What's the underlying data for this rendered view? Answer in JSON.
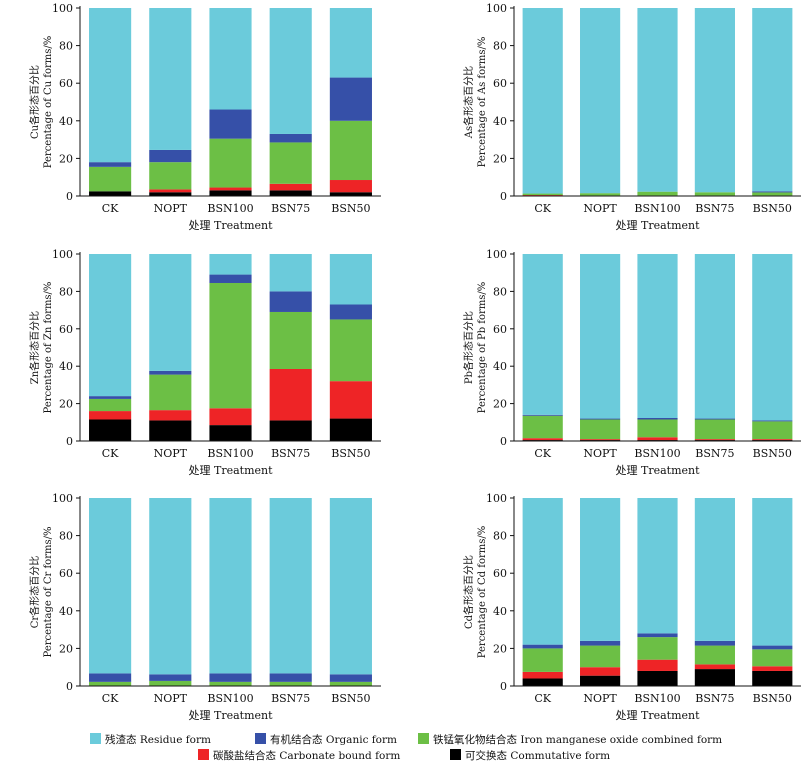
{
  "legend": [
    {
      "key": "residue",
      "label": "残渣态 Residue form",
      "color": "#6bcbdb"
    },
    {
      "key": "organic",
      "label": "有机结合态 Organic form",
      "color": "#3650a8"
    },
    {
      "key": "ironmn",
      "label": "铁锰氧化物结合态 Iron manganese oxide combined form",
      "color": "#6cbf45"
    },
    {
      "key": "carbonate",
      "label": "碳酸盐结合态 Carbonate bound form",
      "color": "#ee2426"
    },
    {
      "key": "commutative",
      "label": "可交换态 Commutative form",
      "color": "#000000"
    }
  ],
  "chart_data": [
    {
      "type": "bar",
      "stacked": true,
      "ylabel_cn": "Cu各形态百分比",
      "ylabel_en": "Percentage of Cu forms/%",
      "xlabel": "处理 Treatment",
      "categories": [
        "CK",
        "NOPT",
        "BSN100",
        "BSN75",
        "BSN50"
      ],
      "ylim": [
        0,
        100
      ],
      "yticks": [
        0,
        20,
        40,
        60,
        80,
        100
      ],
      "series": [
        {
          "key": "commutative",
          "values": [
            2.5,
            2,
            3,
            3,
            2
          ]
        },
        {
          "key": "carbonate",
          "values": [
            0,
            1.5,
            1.5,
            3.5,
            6.5
          ]
        },
        {
          "key": "ironmn",
          "values": [
            13,
            14.5,
            26,
            22,
            31.5
          ]
        },
        {
          "key": "organic",
          "values": [
            2.5,
            6.5,
            15.5,
            4.5,
            23
          ]
        },
        {
          "key": "residue",
          "values": [
            82,
            75.5,
            54,
            67,
            37
          ]
        }
      ]
    },
    {
      "type": "bar",
      "stacked": true,
      "ylabel_cn": "As各形态百分比",
      "ylabel_en": "Percentage of As forms/%",
      "xlabel": "处理 Treatment",
      "categories": [
        "CK",
        "NOPT",
        "BSN100",
        "BSN75",
        "BSN50"
      ],
      "ylim": [
        0,
        100
      ],
      "yticks": [
        0,
        20,
        40,
        60,
        80,
        100
      ],
      "series": [
        {
          "key": "commutative",
          "values": [
            0,
            0,
            0,
            0,
            0
          ]
        },
        {
          "key": "carbonate",
          "values": [
            0.5,
            0.3,
            0.3,
            0.3,
            0.3
          ]
        },
        {
          "key": "ironmn",
          "values": [
            0.8,
            1.2,
            2,
            1.7,
            1.6
          ]
        },
        {
          "key": "organic",
          "values": [
            0,
            0,
            0,
            0,
            0.6
          ]
        },
        {
          "key": "residue",
          "values": [
            98.7,
            98.5,
            97.7,
            98,
            97.5
          ]
        }
      ]
    },
    {
      "type": "bar",
      "stacked": true,
      "ylabel_cn": "Zn各形态百分比",
      "ylabel_en": "Percentage of Zn forms/%",
      "xlabel": "处理 Treatment",
      "categories": [
        "CK",
        "NOPT",
        "BSN100",
        "BSN75",
        "BSN50"
      ],
      "ylim": [
        0,
        100
      ],
      "yticks": [
        0,
        20,
        40,
        60,
        80,
        100
      ],
      "series": [
        {
          "key": "commutative",
          "values": [
            11.5,
            11,
            8.5,
            11,
            12
          ]
        },
        {
          "key": "carbonate",
          "values": [
            4.5,
            5.5,
            9,
            27.5,
            20
          ]
        },
        {
          "key": "ironmn",
          "values": [
            6.5,
            19,
            67,
            30.5,
            33
          ]
        },
        {
          "key": "organic",
          "values": [
            1.5,
            2,
            4.5,
            11,
            8
          ]
        },
        {
          "key": "residue",
          "values": [
            76,
            62.5,
            11,
            20,
            27
          ]
        }
      ]
    },
    {
      "type": "bar",
      "stacked": true,
      "ylabel_cn": "Pb各形态百分比",
      "ylabel_en": "Percentage of Pb forms/%",
      "xlabel": "处理 Treatment",
      "categories": [
        "CK",
        "NOPT",
        "BSN100",
        "BSN75",
        "BSN50"
      ],
      "ylim": [
        0,
        100
      ],
      "yticks": [
        0,
        20,
        40,
        60,
        80,
        100
      ],
      "series": [
        {
          "key": "commutative",
          "values": [
            0.5,
            0.5,
            0.5,
            0.5,
            0.5
          ]
        },
        {
          "key": "carbonate",
          "values": [
            1,
            0.5,
            1.5,
            0.5,
            0.5
          ]
        },
        {
          "key": "ironmn",
          "values": [
            12,
            10.5,
            9.5,
            10.5,
            9.5
          ]
        },
        {
          "key": "organic",
          "values": [
            0.5,
            0.5,
            0.8,
            0.5,
            0.5
          ]
        },
        {
          "key": "residue",
          "values": [
            86,
            88,
            87.7,
            88,
            89
          ]
        }
      ]
    },
    {
      "type": "bar",
      "stacked": true,
      "ylabel_cn": "Cr各形态百分比",
      "ylabel_en": "Percentage of Cr forms/%",
      "xlabel": "处理 Treatment",
      "categories": [
        "CK",
        "NOPT",
        "BSN100",
        "BSN75",
        "BSN50"
      ],
      "ylim": [
        0,
        100
      ],
      "yticks": [
        0,
        20,
        40,
        60,
        80,
        100
      ],
      "series": [
        {
          "key": "commutative",
          "values": [
            0,
            0,
            0,
            0,
            0
          ]
        },
        {
          "key": "carbonate",
          "values": [
            0.2,
            0.2,
            0.2,
            0.2,
            0.2
          ]
        },
        {
          "key": "ironmn",
          "values": [
            2,
            2.5,
            2,
            2,
            2
          ]
        },
        {
          "key": "organic",
          "values": [
            4.5,
            3.5,
            4.5,
            4.5,
            4
          ]
        },
        {
          "key": "residue",
          "values": [
            93.3,
            93.8,
            93.3,
            93.3,
            93.8
          ]
        }
      ]
    },
    {
      "type": "bar",
      "stacked": true,
      "ylabel_cn": "Cd各形态百分比",
      "ylabel_en": "Percentage of Cd forms/%",
      "xlabel": "处理 Treatment",
      "categories": [
        "CK",
        "NOPT",
        "BSN100",
        "BSN75",
        "BSN50"
      ],
      "ylim": [
        0,
        100
      ],
      "yticks": [
        0,
        20,
        40,
        60,
        80,
        100
      ],
      "series": [
        {
          "key": "commutative",
          "values": [
            4,
            5.5,
            8,
            9,
            8
          ]
        },
        {
          "key": "carbonate",
          "values": [
            3.5,
            4.5,
            6,
            2.5,
            2.5
          ]
        },
        {
          "key": "ironmn",
          "values": [
            12.5,
            11.5,
            12,
            10,
            9
          ]
        },
        {
          "key": "organic",
          "values": [
            2,
            2.5,
            2,
            2.5,
            2
          ]
        },
        {
          "key": "residue",
          "values": [
            78,
            76,
            72,
            76,
            78.5
          ]
        }
      ]
    }
  ]
}
